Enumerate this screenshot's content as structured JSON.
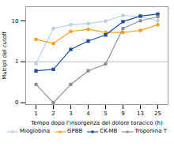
{
  "chart_data": {
    "type": "line",
    "xlabel": "Tempo dopo l'insorgenza del dolore toracico (h)",
    "ylabel": "Multipli del cutoff",
    "categories": [
      "1",
      "2",
      "3",
      "4",
      "5",
      "9",
      "13",
      "25"
    ],
    "series": [
      {
        "name": "Mioglobina",
        "color": "#b8cfe0",
        "marker": "circle",
        "values": [
          0.9,
          6.5,
          8.0,
          8.5,
          9.8,
          13.5,
          12.5,
          10.0
        ]
      },
      {
        "name": "GPBB",
        "color": "#f5a020",
        "marker": "circle",
        "values": [
          3.5,
          2.8,
          5.5,
          6.2,
          5.2,
          5.2,
          5.8,
          8.0
        ]
      },
      {
        "name": "CK-MB",
        "color": "#1f4e9b",
        "marker": "square",
        "values": [
          0.6,
          0.65,
          2.0,
          3.2,
          4.5,
          9.5,
          13.0,
          14.5
        ]
      },
      {
        "name": "Troponina T",
        "color": "#909090",
        "marker": "circle",
        "values": [
          0.28,
          0.1,
          0.28,
          0.6,
          0.88,
          6.5,
          10.0,
          12.5
        ]
      }
    ],
    "reference_lines": [
      {
        "y": 1.0,
        "color": "#a0a8b0"
      }
    ],
    "log": "y",
    "ylim": [
      0.09,
      22
    ],
    "yticks": [
      {
        "value": 0.1,
        "label": "0"
      },
      1,
      10
    ],
    "grid": false,
    "legend": "bottom"
  }
}
